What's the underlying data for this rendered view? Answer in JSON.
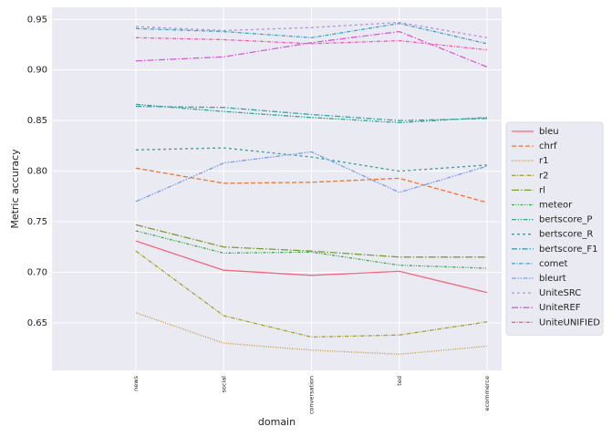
{
  "chart_data": {
    "type": "line",
    "title": "",
    "xlabel": "domain",
    "ylabel": "Metric accuracy",
    "ylim": [
      0.603,
      0.962
    ],
    "y_ticks": [
      0.65,
      0.7,
      0.75,
      0.8,
      0.85,
      0.9,
      0.95
    ],
    "y_tick_labels": [
      "0.65",
      "0.70",
      "0.75",
      "0.80",
      "0.85",
      "0.90",
      "0.95"
    ],
    "categories": [
      "news",
      "social",
      "conversation",
      "ted",
      "ecommerce"
    ],
    "grid": true,
    "legend_position": "right",
    "series": [
      {
        "name": "bleu",
        "color": "#f2677d",
        "dash": "",
        "values": [
          0.731,
          0.702,
          0.697,
          0.701,
          0.68
        ]
      },
      {
        "name": "chrf",
        "color": "#e8773a",
        "dash": "5,2.5",
        "values": [
          0.803,
          0.788,
          0.789,
          0.793,
          0.769
        ]
      },
      {
        "name": "r1",
        "color": "#c69334",
        "dash": "1,1.6",
        "values": [
          0.66,
          0.63,
          0.623,
          0.619,
          0.627
        ]
      },
      {
        "name": "r2",
        "color": "#a5a233",
        "dash": "4.5,1.5,1,1.5",
        "values": [
          0.721,
          0.657,
          0.636,
          0.638,
          0.651
        ]
      },
      {
        "name": "rl",
        "color": "#7b9e31",
        "dash": "8,2,1.5,2",
        "values": [
          0.747,
          0.725,
          0.721,
          0.715,
          0.715
        ]
      },
      {
        "name": "meteor",
        "color": "#36a84a",
        "dash": "3,1.5,1,1.5,1,1.5",
        "values": [
          0.741,
          0.719,
          0.72,
          0.707,
          0.704
        ]
      },
      {
        "name": "bertscore_P",
        "color": "#34a68c",
        "dash": "5,1.5,1.5,1.5,1.5,1.5",
        "values": [
          0.866,
          0.859,
          0.853,
          0.848,
          0.853
        ]
      },
      {
        "name": "bertscore_R",
        "color": "#36a29c",
        "dash": "3,3",
        "values": [
          0.821,
          0.823,
          0.814,
          0.8,
          0.806
        ]
      },
      {
        "name": "bertscore_F1",
        "color": "#38a2ad",
        "dash": "6,2,1.5,2",
        "values": [
          0.864,
          0.863,
          0.856,
          0.85,
          0.852
        ]
      },
      {
        "name": "comet",
        "color": "#3aa3c8",
        "dash": "4,1.5,1,1.5",
        "values": [
          0.941,
          0.938,
          0.932,
          0.946,
          0.926
        ]
      },
      {
        "name": "bleurt",
        "color": "#7e9de8",
        "dash": "5,1.5,1.5,1.5,1.5,1.5",
        "values": [
          0.77,
          0.808,
          0.819,
          0.779,
          0.805
        ]
      },
      {
        "name": "UniteSRC",
        "color": "#b98ee8",
        "dash": "3,3",
        "values": [
          0.943,
          0.939,
          0.942,
          0.947,
          0.932
        ]
      },
      {
        "name": "UniteREF",
        "color": "#d959d9",
        "dash": "7,2,1.5,2",
        "values": [
          0.909,
          0.913,
          0.927,
          0.938,
          0.903
        ]
      },
      {
        "name": "UniteUNIFIED",
        "color": "#f05ab2",
        "dash": "4,1.5,1,1.5",
        "values": [
          0.932,
          0.93,
          0.926,
          0.929,
          0.92
        ]
      }
    ]
  }
}
